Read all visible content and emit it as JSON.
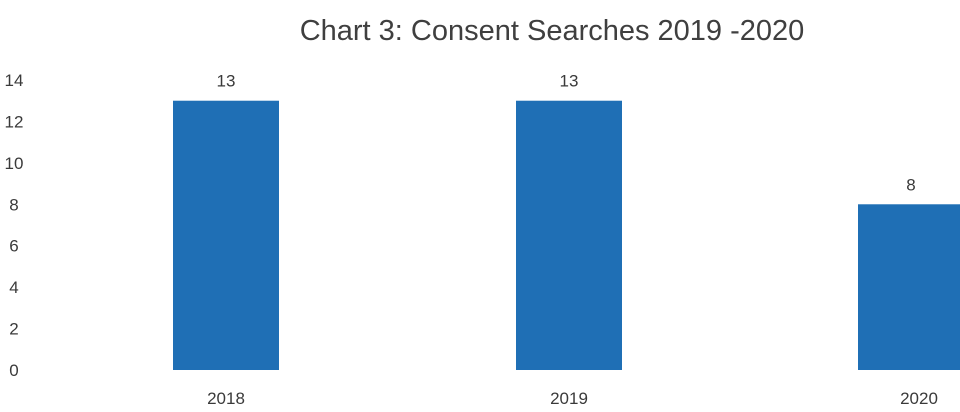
{
  "chart_data": {
    "type": "bar",
    "title": "Chart 3: Consent Searches 2019 -2020",
    "categories": [
      "2018",
      "2019",
      "2020"
    ],
    "values": [
      13,
      13,
      8
    ],
    "data_labels": [
      "13",
      "13",
      "8"
    ],
    "y_ticks": [
      "0",
      "2",
      "4",
      "6",
      "8",
      "10",
      "12",
      "14"
    ],
    "ylim": [
      0,
      14
    ],
    "grid": false,
    "legend": "none",
    "bar_color": "#1f6fb5"
  }
}
